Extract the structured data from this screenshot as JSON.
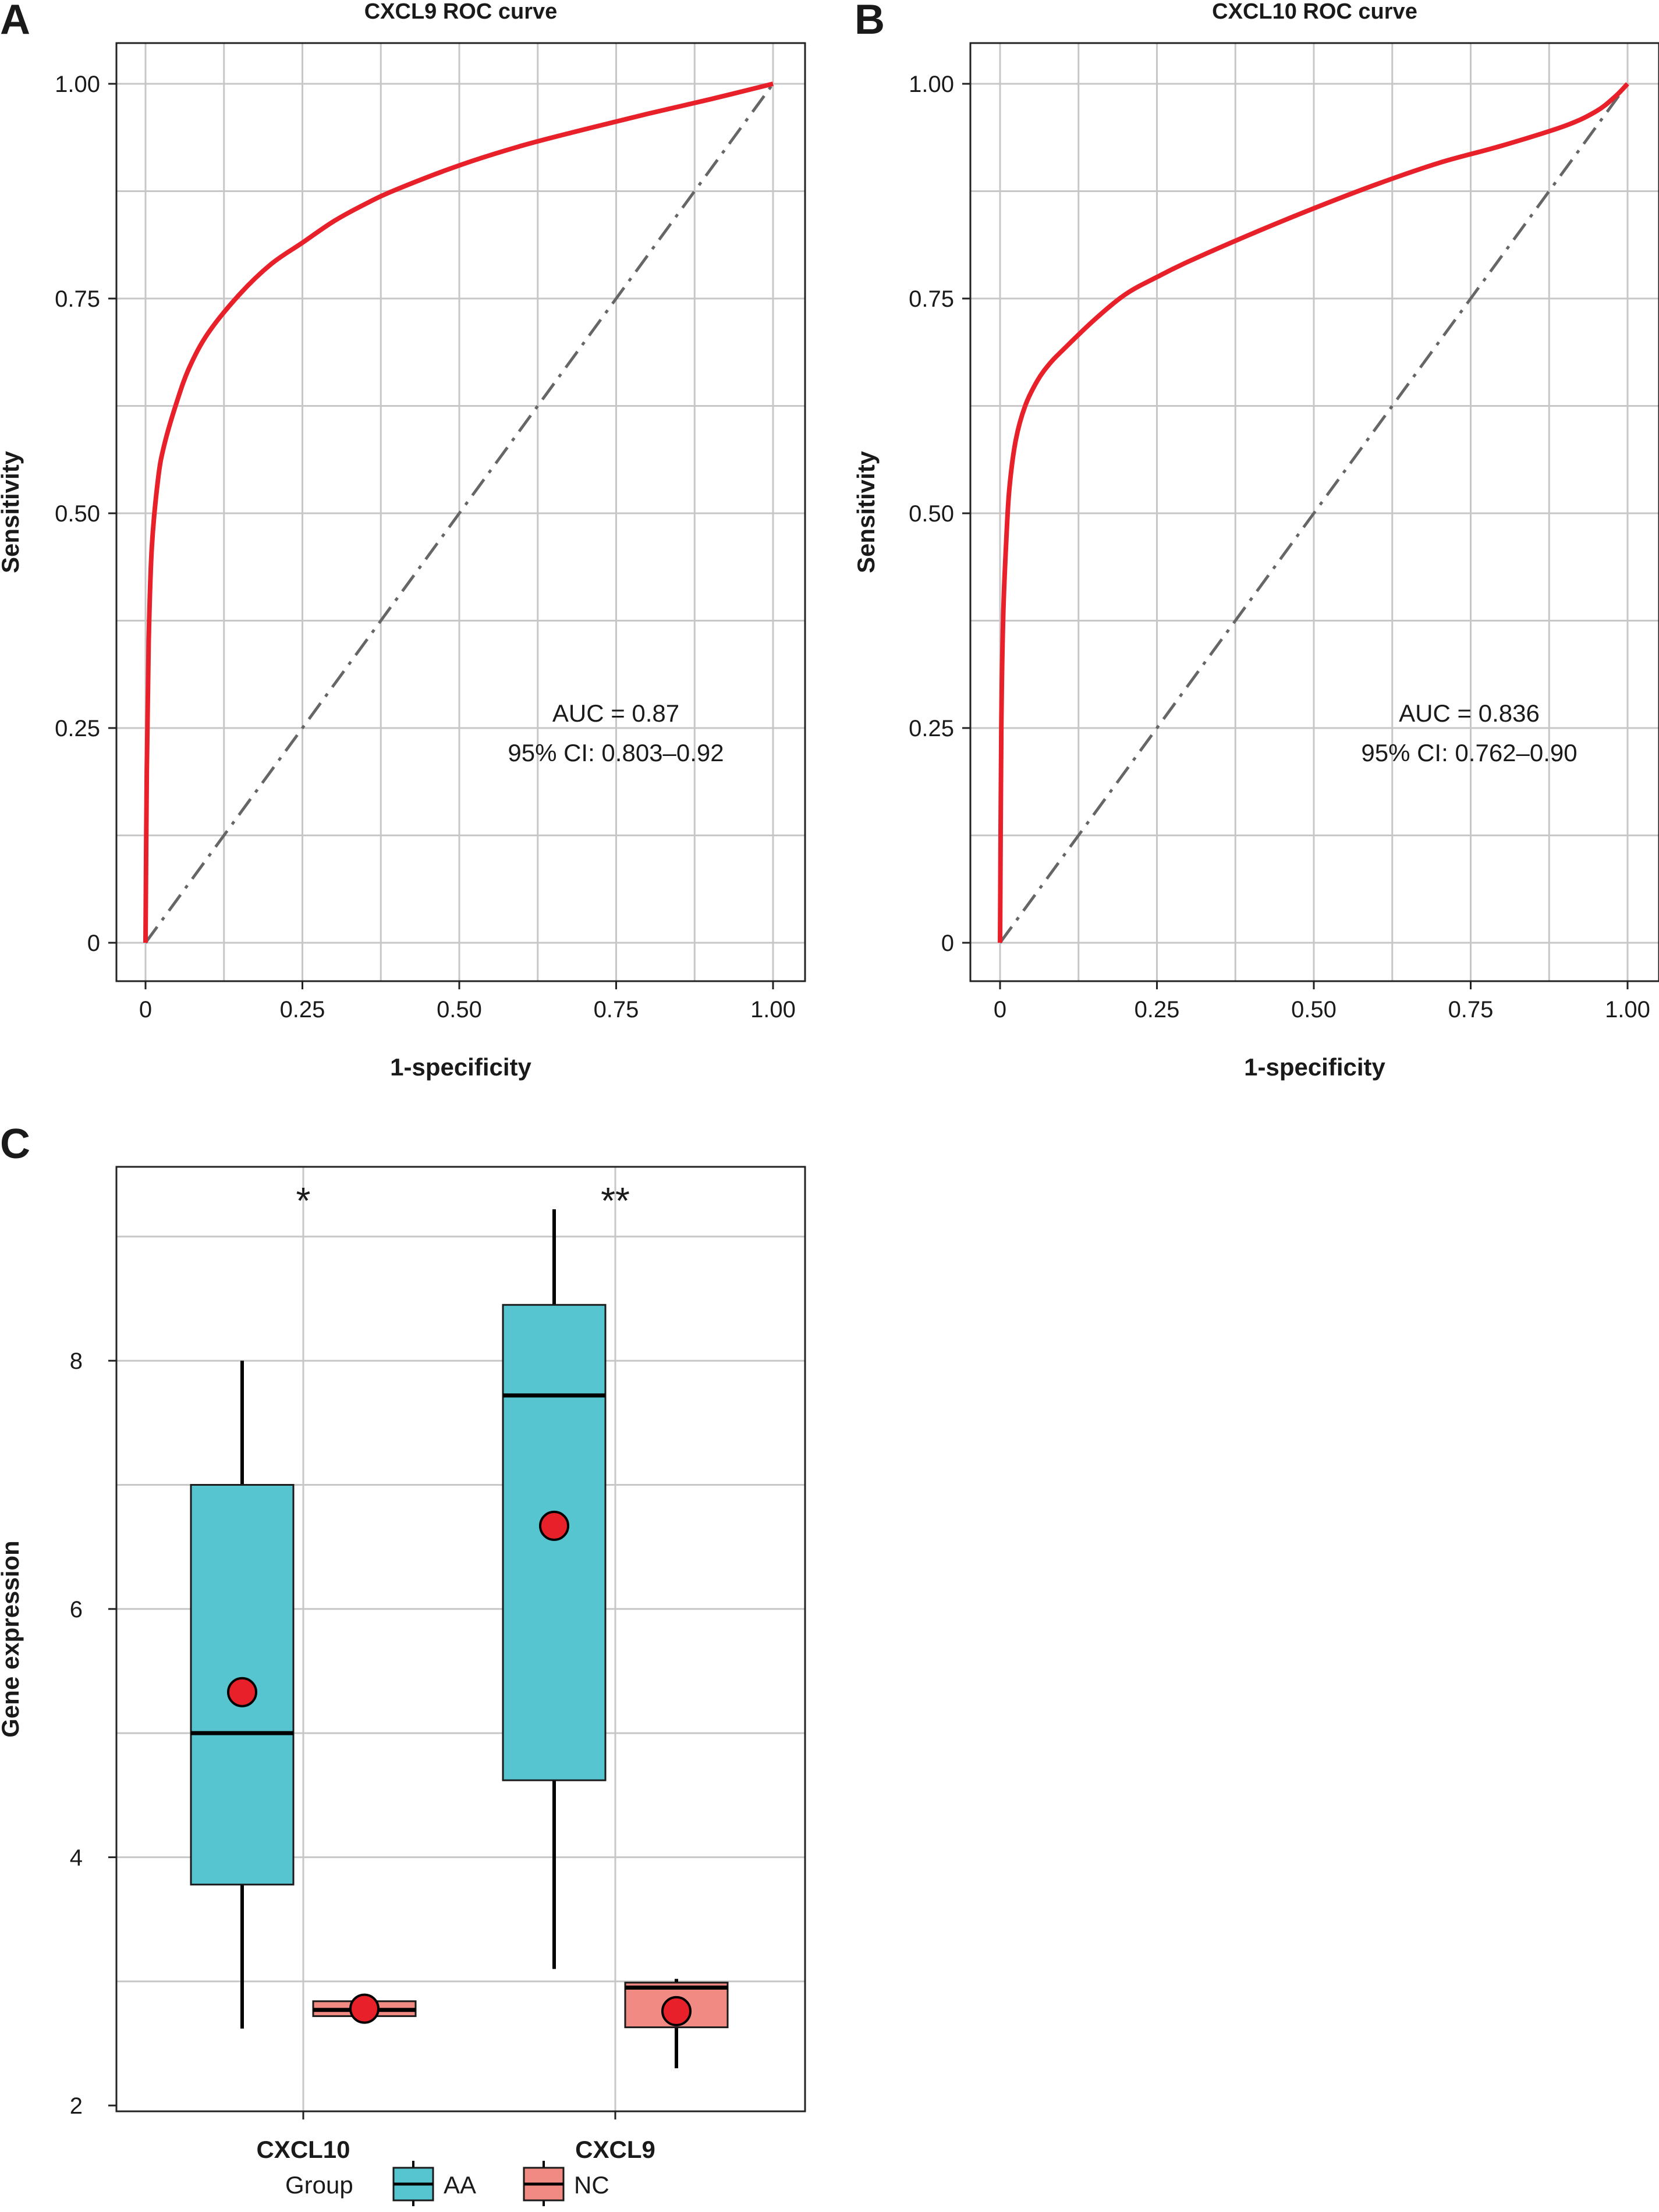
{
  "chart_data": [
    {
      "panel": "A",
      "type": "line",
      "title": "CXCL9 ROC curve",
      "xlabel": "1-specificity",
      "ylabel": "Sensitivity",
      "xlim": [
        0,
        1
      ],
      "ylim": [
        0,
        1
      ],
      "xticks": [
        0,
        0.25,
        0.5,
        0.75,
        1
      ],
      "yticks": [
        0,
        0.25,
        0.5,
        0.75,
        1
      ],
      "xtick_labels": [
        "0",
        "0.25",
        "0.50",
        "0.75",
        "1.00"
      ],
      "ytick_labels": [
        "0",
        "0.25",
        "0.50",
        "0.75",
        "1.00"
      ],
      "grid": true,
      "series": [
        {
          "name": "ROC",
          "color": "#e8202a",
          "x": [
            0,
            0.002,
            0.005,
            0.01,
            0.02,
            0.03,
            0.05,
            0.07,
            0.1,
            0.15,
            0.2,
            0.25,
            0.3,
            0.35,
            0.4,
            0.5,
            0.6,
            0.7,
            0.8,
            0.9,
            1.0
          ],
          "y": [
            0,
            0.2,
            0.35,
            0.46,
            0.54,
            0.58,
            0.63,
            0.67,
            0.71,
            0.755,
            0.79,
            0.815,
            0.84,
            0.86,
            0.877,
            0.905,
            0.928,
            0.947,
            0.965,
            0.982,
            1.0
          ]
        },
        {
          "name": "chance",
          "color": "#666666",
          "x": [
            0,
            1
          ],
          "y": [
            0,
            1
          ]
        }
      ],
      "annotations": [
        "AUC = 0.87",
        "95% CI: 0.803–0.92"
      ]
    },
    {
      "panel": "B",
      "type": "line",
      "title": "CXCL10 ROC curve",
      "xlabel": "1-specificity",
      "ylabel": "Sensitivity",
      "xlim": [
        0,
        1
      ],
      "ylim": [
        0,
        1
      ],
      "xticks": [
        0,
        0.25,
        0.5,
        0.75,
        1
      ],
      "yticks": [
        0,
        0.25,
        0.5,
        0.75,
        1
      ],
      "xtick_labels": [
        "0",
        "0.25",
        "0.50",
        "0.75",
        "1.00"
      ],
      "ytick_labels": [
        "0",
        "0.25",
        "0.50",
        "0.75",
        "1.00"
      ],
      "grid": true,
      "series": [
        {
          "name": "ROC",
          "color": "#e8202a",
          "x": [
            0,
            0.002,
            0.005,
            0.01,
            0.015,
            0.025,
            0.04,
            0.06,
            0.08,
            0.1,
            0.15,
            0.2,
            0.25,
            0.3,
            0.4,
            0.5,
            0.6,
            0.7,
            0.8,
            0.9,
            0.95,
            0.98,
            1.0
          ],
          "y": [
            0,
            0.25,
            0.38,
            0.47,
            0.53,
            0.585,
            0.625,
            0.655,
            0.675,
            0.69,
            0.725,
            0.755,
            0.775,
            0.793,
            0.825,
            0.855,
            0.883,
            0.908,
            0.928,
            0.951,
            0.968,
            0.985,
            1.0
          ]
        },
        {
          "name": "chance",
          "color": "#666666",
          "x": [
            0,
            1
          ],
          "y": [
            0,
            1
          ]
        }
      ],
      "annotations": [
        "AUC = 0.836",
        "95% CI: 0.762–0.90"
      ]
    },
    {
      "panel": "C",
      "type": "box",
      "title": "",
      "xlabel": "",
      "ylabel": "Gene expression",
      "ylim": [
        2,
        9.8
      ],
      "yticks": [
        2,
        4,
        6,
        8
      ],
      "ytick_labels": [
        "2",
        "4",
        "6",
        "8"
      ],
      "categories": [
        "CXCL10",
        "CXCL9"
      ],
      "legend": {
        "title": "Group",
        "entries": [
          {
            "label": "AA",
            "color": "#57c5d0"
          },
          {
            "label": "NC",
            "color": "#f08a83"
          }
        ],
        "position": "bottom"
      },
      "mean_marker_color": "#e8202a",
      "series": [
        {
          "name": "AA",
          "color": "#57c5d0",
          "boxes": [
            {
              "min": 2.62,
              "q1": 3.78,
              "median": 5.0,
              "q3": 7.0,
              "max": 8.0,
              "mean": 5.33
            },
            {
              "min": 3.1,
              "q1": 4.62,
              "median": 7.72,
              "q3": 8.45,
              "max": 9.22,
              "mean": 6.67
            }
          ]
        },
        {
          "name": "NC",
          "color": "#f08a83",
          "boxes": [
            {
              "min": 2.72,
              "q1": 2.72,
              "median": 2.77,
              "q3": 2.84,
              "max": 2.84,
              "mean": 2.78
            },
            {
              "min": 2.3,
              "q1": 2.63,
              "median": 2.95,
              "q3": 2.99,
              "max": 3.02,
              "mean": 2.76
            }
          ]
        }
      ],
      "significance": [
        "*",
        "**"
      ]
    }
  ]
}
